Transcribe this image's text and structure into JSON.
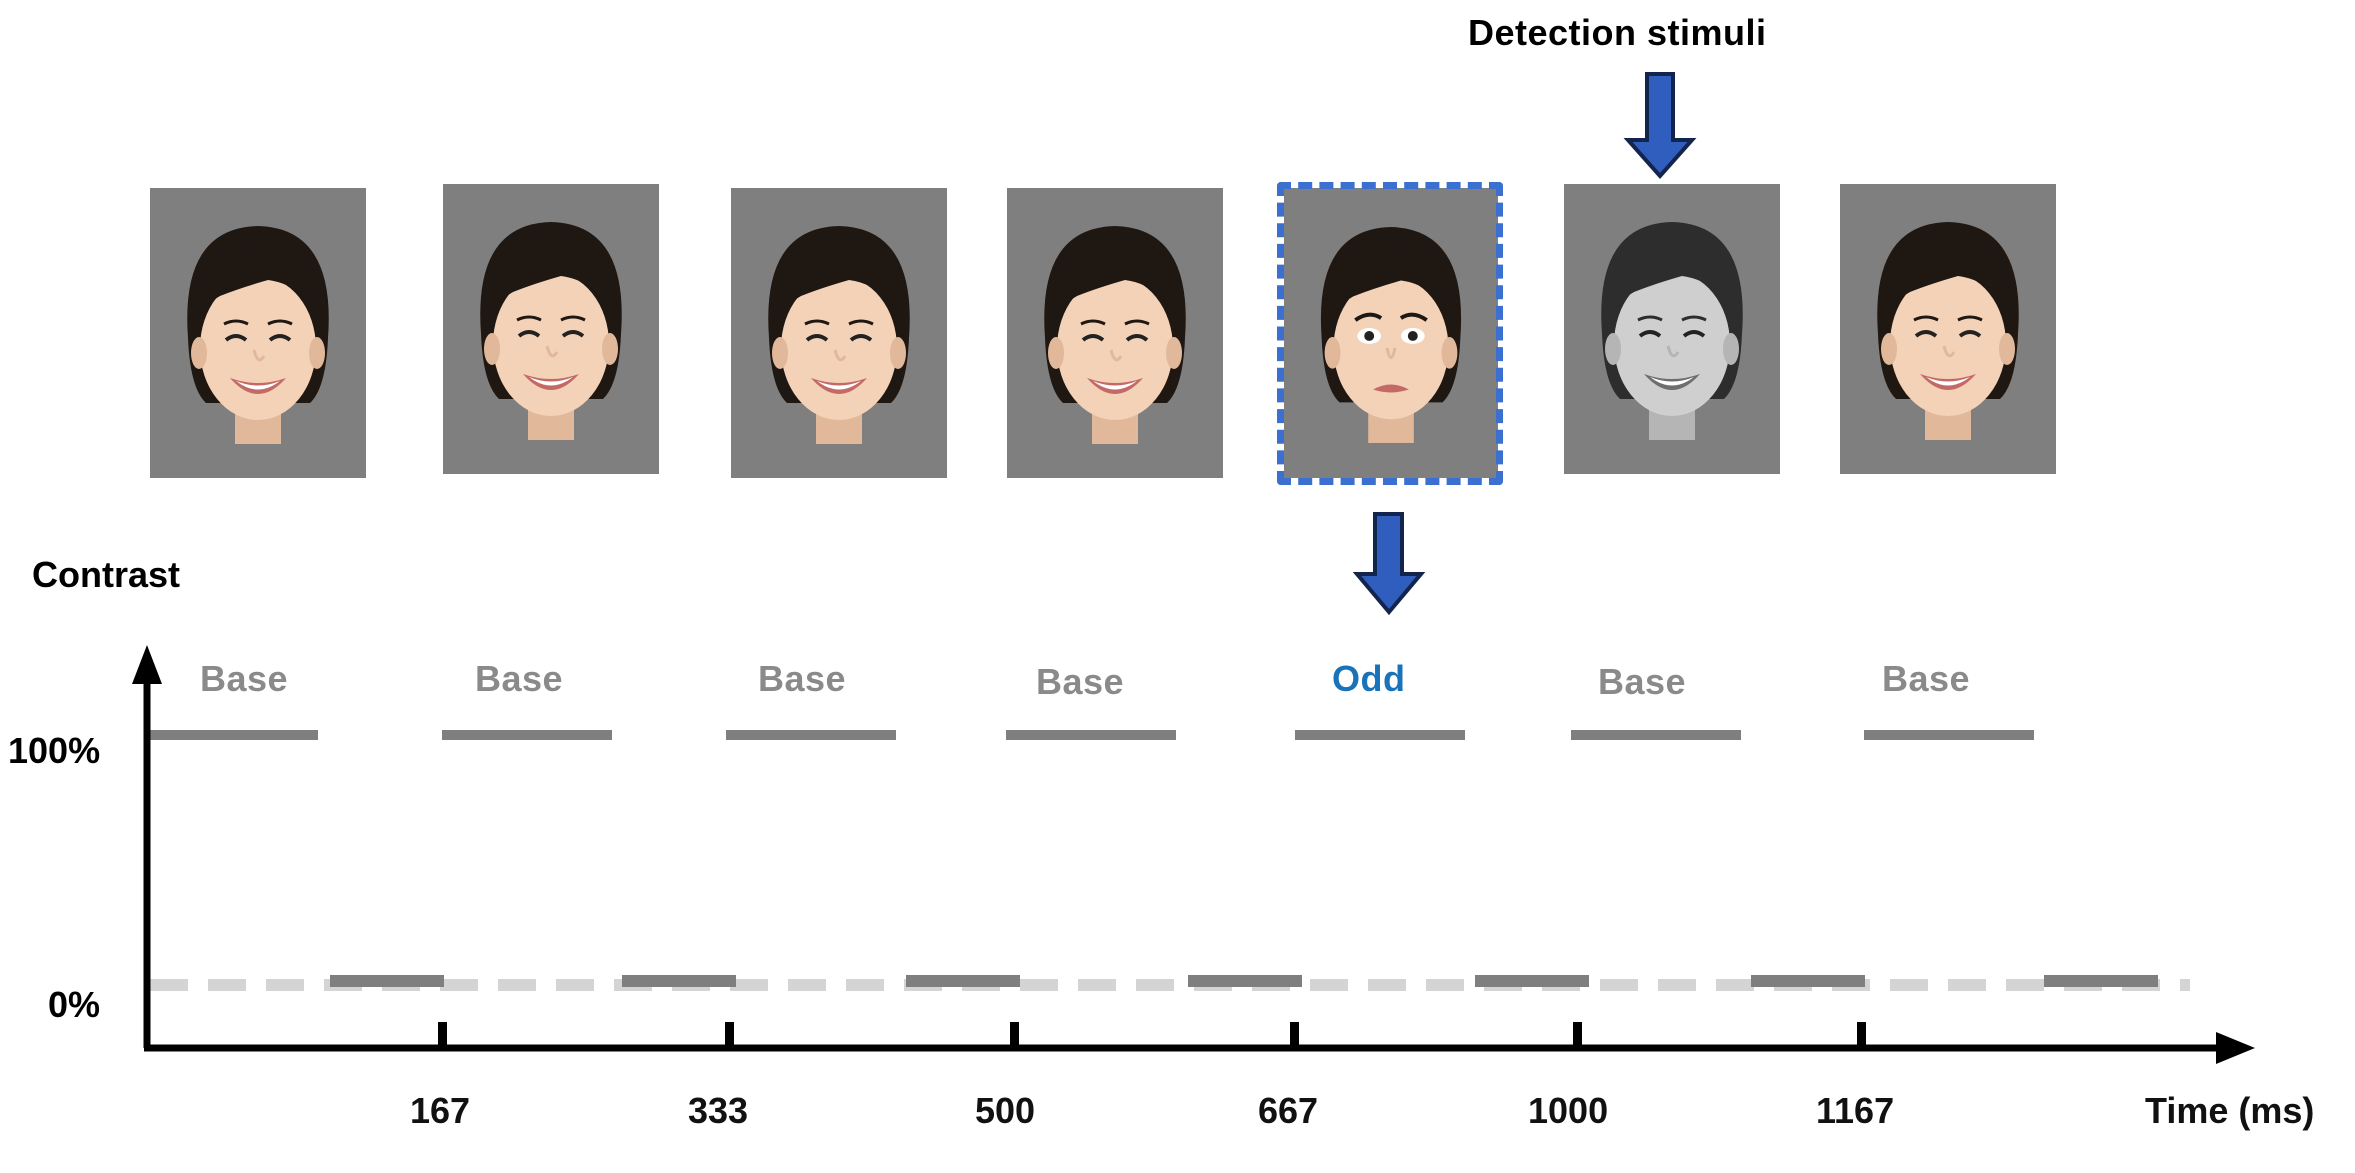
{
  "title": "Detection stimuli",
  "y_axis_label": "Contrast",
  "x_axis_label": "Time (ms)",
  "y_levels": [
    "100%",
    "0%"
  ],
  "x_ticks": [
    "167",
    "333",
    "500",
    "667",
    "1000",
    "1167"
  ],
  "conditions": [
    "Base",
    "Base",
    "Base",
    "Base",
    "Odd",
    "Base",
    "Base"
  ],
  "faces": [
    {
      "expression": "smile",
      "tone": "color"
    },
    {
      "expression": "smile",
      "tone": "color"
    },
    {
      "expression": "smile",
      "tone": "color"
    },
    {
      "expression": "smile",
      "tone": "color"
    },
    {
      "expression": "fear",
      "tone": "color"
    },
    {
      "expression": "smile",
      "tone": "grayscale"
    },
    {
      "expression": "smile",
      "tone": "color"
    }
  ],
  "colors": {
    "on_segment": "#7f7f7f",
    "off_segment": "#7f7f7f",
    "zero_dashed_line": "#d4d4d4",
    "odd_label": "#1a73b8",
    "base_label": "#8a8a8a",
    "arrow_fill": "#2f5ebe",
    "arrow_stroke": "#14254d",
    "odd_frame": "#3b6fd0"
  }
}
